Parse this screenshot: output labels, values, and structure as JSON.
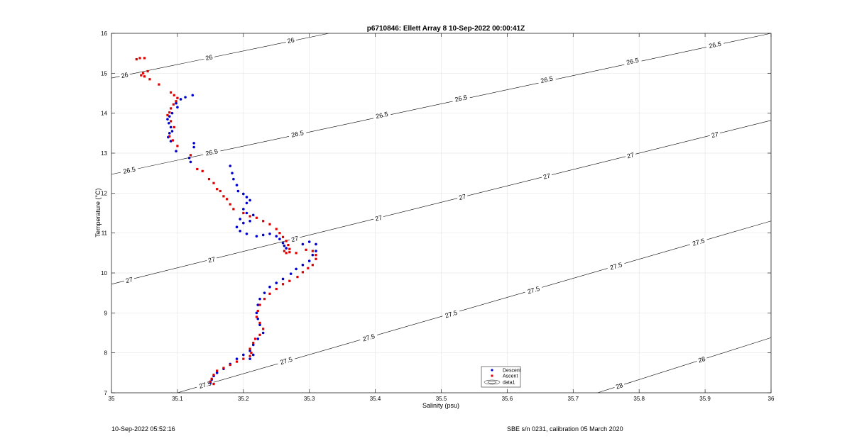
{
  "footer": {
    "timestamp": "10-Sep-2022 05:52:16",
    "sensor": "SBE s/n 0231, calibration 05 March 2020"
  },
  "chart_data": {
    "type": "scatter",
    "title": "p6710846: Ellett Array 8 10-Sep-2022 00:00:41Z",
    "xlabel": "Salinity (psu)",
    "ylabel": "Temperature (°C)",
    "xlim": [
      35,
      36
    ],
    "ylim": [
      7,
      16
    ],
    "x_ticks": [
      "35",
      "35.1",
      "35.2",
      "35.3",
      "35.4",
      "35.5",
      "35.6",
      "35.7",
      "35.8",
      "35.9",
      "36"
    ],
    "y_ticks": [
      "7",
      "8",
      "9",
      "10",
      "11",
      "12",
      "13",
      "14",
      "15",
      "16"
    ],
    "grid": true,
    "legend_position": "bottom-right",
    "legend": [
      "Descent",
      "Ascent",
      "data1"
    ],
    "colors": {
      "descent": "#0000cc",
      "ascent": "#dd0000",
      "contour": "#000000",
      "grid": "#e6e6e6"
    },
    "contours": [
      {
        "label": "26",
        "points": [
          [
            35.0,
            14.88
          ],
          [
            35.33,
            16.0
          ]
        ],
        "labels_at": [
          [
            35.02,
            14.95
          ],
          [
            35.148,
            15.39
          ],
          [
            35.272,
            15.82
          ]
        ]
      },
      {
        "label": "26.5",
        "points": [
          [
            35.0,
            12.47
          ],
          [
            36.0,
            16.0
          ]
        ],
        "labels_at": [
          [
            35.027,
            12.57
          ],
          [
            35.152,
            13.02
          ],
          [
            35.282,
            13.48
          ],
          [
            35.41,
            13.95
          ],
          [
            35.53,
            14.37
          ],
          [
            35.66,
            14.84
          ],
          [
            35.79,
            15.3
          ],
          [
            35.915,
            15.71
          ]
        ]
      },
      {
        "label": "27",
        "points": [
          [
            35.0,
            9.72
          ],
          [
            36.0,
            13.82
          ]
        ],
        "labels_at": [
          [
            35.027,
            9.82
          ],
          [
            35.152,
            10.33
          ],
          [
            35.278,
            10.85
          ],
          [
            35.405,
            11.37
          ],
          [
            35.532,
            11.9
          ],
          [
            35.66,
            12.42
          ],
          [
            35.787,
            12.94
          ],
          [
            35.915,
            13.46
          ]
        ]
      },
      {
        "label": "27.5",
        "points": [
          [
            35.1,
            7.0
          ],
          [
            36.0,
            11.3
          ]
        ],
        "labels_at": [
          [
            35.142,
            7.2
          ],
          [
            35.265,
            7.8
          ],
          [
            35.39,
            8.38
          ],
          [
            35.515,
            8.97
          ],
          [
            35.64,
            9.57
          ],
          [
            35.765,
            10.17
          ],
          [
            35.89,
            10.77
          ]
        ]
      },
      {
        "label": "28",
        "points": [
          [
            35.737,
            7.0
          ],
          [
            36.0,
            8.38
          ]
        ],
        "labels_at": [
          [
            35.77,
            7.17
          ],
          [
            35.895,
            7.83
          ]
        ]
      }
    ],
    "series": [
      {
        "name": "Descent",
        "x": [
          35.123,
          35.112,
          35.105,
          35.098,
          35.1,
          35.092,
          35.088,
          35.085,
          35.087,
          35.09,
          35.092,
          35.088,
          35.086,
          35.09,
          35.098,
          35.118,
          35.125,
          35.125,
          35.12,
          35.18,
          35.183,
          35.185,
          35.19,
          35.192,
          35.2,
          35.205,
          35.21,
          35.205,
          35.2,
          35.205,
          35.215,
          35.21,
          35.2,
          35.195,
          35.19,
          35.195,
          35.205,
          35.22,
          35.23,
          35.24,
          35.25,
          35.255,
          35.26,
          35.262,
          35.265,
          35.29,
          35.3,
          35.31,
          35.31,
          35.305,
          35.3,
          35.29,
          35.28,
          35.272,
          35.26,
          35.25,
          35.24,
          35.232,
          35.225,
          35.222,
          35.22,
          35.222,
          35.225,
          35.23,
          35.222,
          35.215,
          35.21,
          35.215,
          35.21,
          35.2,
          35.19,
          35.18,
          35.17,
          35.16,
          35.155,
          35.152,
          35.15
        ],
        "y": [
          14.45,
          14.4,
          14.35,
          14.25,
          14.15,
          14.0,
          13.92,
          13.85,
          13.75,
          13.65,
          13.55,
          13.5,
          13.4,
          13.3,
          13.05,
          12.88,
          13.15,
          13.25,
          12.78,
          12.68,
          12.5,
          12.35,
          12.2,
          12.05,
          11.98,
          11.9,
          11.82,
          11.75,
          11.6,
          11.5,
          11.45,
          11.3,
          11.25,
          11.35,
          11.15,
          11.05,
          10.98,
          10.92,
          10.95,
          10.98,
          10.92,
          10.85,
          10.75,
          10.68,
          10.62,
          10.72,
          10.78,
          10.72,
          10.55,
          10.45,
          10.3,
          10.2,
          10.1,
          9.98,
          9.85,
          9.75,
          9.65,
          9.5,
          9.35,
          9.2,
          9.0,
          8.85,
          8.7,
          8.5,
          8.35,
          8.2,
          8.05,
          7.95,
          7.85,
          7.95,
          7.85,
          7.72,
          7.6,
          7.5,
          7.42,
          7.33,
          7.25
        ]
      },
      {
        "name": "Ascent",
        "x": [
          35.038,
          35.043,
          35.05,
          35.048,
          35.055,
          35.045,
          35.05,
          35.058,
          35.072,
          35.09,
          35.095,
          35.1,
          35.098,
          35.094,
          35.09,
          35.088,
          35.085,
          35.09,
          35.095,
          35.088,
          35.093,
          35.1,
          35.12,
          35.13,
          35.138,
          35.148,
          35.155,
          35.16,
          35.165,
          35.17,
          35.175,
          35.18,
          35.185,
          35.2,
          35.21,
          35.22,
          35.23,
          35.24,
          35.25,
          35.255,
          35.26,
          35.265,
          35.268,
          35.27,
          35.265,
          35.262,
          35.27,
          35.28,
          35.295,
          35.305,
          35.31,
          35.31,
          35.305,
          35.298,
          35.29,
          35.282,
          35.27,
          35.26,
          35.25,
          35.24,
          35.232,
          35.225,
          35.222,
          35.22,
          35.225,
          35.23,
          35.225,
          35.218,
          35.215,
          35.21,
          35.212,
          35.21,
          35.2,
          35.19,
          35.18,
          35.17,
          35.16,
          35.155,
          35.152,
          35.15,
          35.155
        ],
        "y": [
          15.35,
          15.38,
          15.38,
          15.0,
          15.05,
          14.95,
          14.92,
          14.85,
          14.72,
          14.52,
          14.45,
          14.38,
          14.3,
          14.22,
          14.12,
          14.02,
          13.95,
          13.8,
          13.65,
          13.42,
          13.32,
          13.18,
          12.95,
          12.6,
          12.55,
          12.35,
          12.25,
          12.1,
          12.05,
          11.92,
          11.85,
          11.72,
          11.6,
          11.5,
          11.42,
          11.38,
          11.3,
          11.22,
          11.1,
          11.0,
          10.9,
          10.8,
          10.7,
          10.6,
          10.5,
          10.55,
          10.52,
          10.5,
          10.58,
          10.55,
          10.45,
          10.35,
          10.2,
          10.12,
          10.02,
          9.9,
          9.8,
          9.72,
          9.6,
          9.48,
          9.35,
          9.2,
          9.05,
          8.9,
          8.75,
          8.6,
          8.45,
          8.35,
          8.25,
          8.1,
          8.0,
          7.92,
          7.85,
          7.78,
          7.7,
          7.62,
          7.55,
          7.45,
          7.35,
          7.28,
          7.22
        ]
      }
    ]
  }
}
